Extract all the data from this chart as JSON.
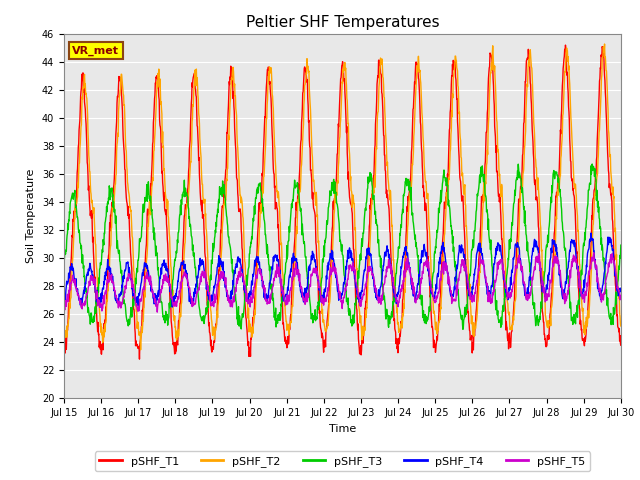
{
  "title": "Peltier SHF Temperatures",
  "xlabel": "Time",
  "ylabel": "Soil Temperature",
  "ylim": [
    20,
    46
  ],
  "xlim_days": [
    0,
    15
  ],
  "tick_labels": [
    "Jul 15",
    "Jul 16",
    "Jul 17",
    "Jul 18",
    "Jul 19",
    "Jul 20",
    "Jul 21",
    "Jul 22",
    "Jul 23",
    "Jul 24",
    "Jul 25",
    "Jul 26",
    "Jul 27",
    "Jul 28",
    "Jul 29",
    "Jul 30"
  ],
  "series": {
    "pSHF_T1": {
      "color": "#FF0000",
      "lw": 1.0
    },
    "pSHF_T2": {
      "color": "#FFA500",
      "lw": 1.0
    },
    "pSHF_T3": {
      "color": "#00CC00",
      "lw": 1.0
    },
    "pSHF_T4": {
      "color": "#0000FF",
      "lw": 1.0
    },
    "pSHF_T5": {
      "color": "#CC00CC",
      "lw": 1.0
    }
  },
  "annotation_text": "VR_met",
  "annotation_facecolor": "#FFFF00",
  "annotation_edgecolor": "#8B4513",
  "annotation_textcolor": "#8B0000",
  "bg_color": "#E8E8E8",
  "fig_bg_color": "#FFFFFF",
  "grid_color": "#FFFFFF",
  "yticks": [
    20,
    22,
    24,
    26,
    28,
    30,
    32,
    34,
    36,
    38,
    40,
    42,
    44,
    46
  ],
  "title_fontsize": 11,
  "axis_label_fontsize": 8,
  "tick_fontsize": 7,
  "legend_fontsize": 8
}
